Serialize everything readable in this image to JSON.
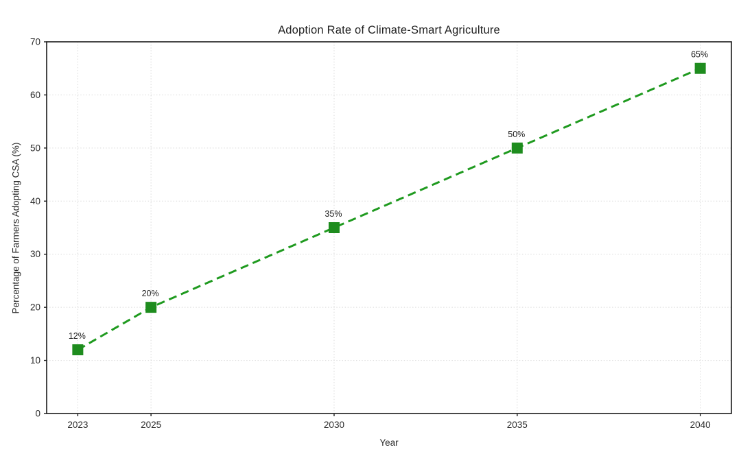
{
  "figure": {
    "background": "#ffffff"
  },
  "chart_data": {
    "type": "line",
    "title": "Adoption Rate of Climate-Smart Agriculture",
    "xlabel": "Year",
    "ylabel": "Percentage of Farmers Adopting CSA (%)",
    "x": [
      2023,
      2025,
      2030,
      2035,
      2040
    ],
    "values": [
      12,
      20,
      35,
      50,
      65
    ],
    "point_labels": [
      "12%",
      "20%",
      "35%",
      "50%",
      "65%"
    ],
    "xticks": [
      2023,
      2025,
      2030,
      2035,
      2040
    ],
    "xtick_labels": [
      "2023",
      "2025",
      "2030",
      "2035",
      "2040"
    ],
    "yticks": [
      0,
      10,
      20,
      30,
      40,
      50,
      60,
      70
    ],
    "ytick_labels": [
      "0",
      "10",
      "20",
      "30",
      "40",
      "50",
      "60",
      "70"
    ],
    "xlim": [
      2022.15,
      2040.85
    ],
    "ylim": [
      0,
      70
    ],
    "grid": true,
    "grid_style": "dotted",
    "line_style": "dashed",
    "marker": "square",
    "colors": {
      "line": "#1f9a1f",
      "marker": "#1e8c1e",
      "grid": "#d9d9d9",
      "spine": "#1a1a1a",
      "tick_text": "#2a2a2a",
      "annotation_text": "#1c1c1c"
    }
  }
}
